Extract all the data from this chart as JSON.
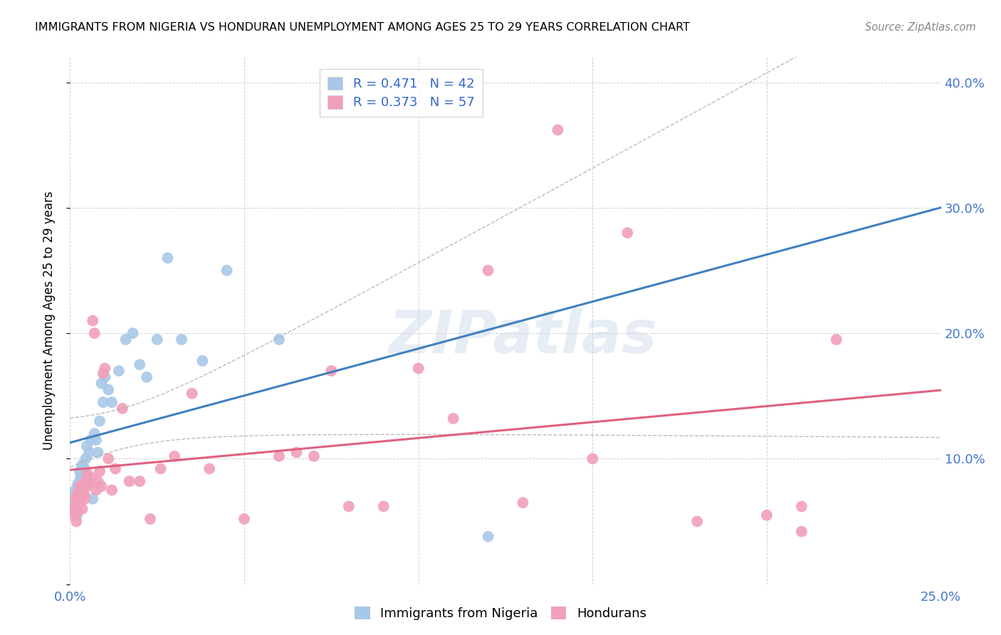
{
  "title": "IMMIGRANTS FROM NIGERIA VS HONDURAN UNEMPLOYMENT AMONG AGES 25 TO 29 YEARS CORRELATION CHART",
  "source": "Source: ZipAtlas.com",
  "ylabel": "Unemployment Among Ages 25 to 29 years",
  "xlim": [
    0.0,
    0.25
  ],
  "ylim": [
    0.0,
    0.42
  ],
  "color_nigeria": "#a8c8e8",
  "color_honduran": "#f0a0b8",
  "color_line_nigeria": "#4080c0",
  "color_line_honduran": "#e06080",
  "color_confint": "#a0b8d0",
  "watermark": "ZIPatlas",
  "legend_label1": "R = 0.471   N = 42",
  "legend_label2": "R = 0.373   N = 57",
  "nigeria_x": [
    0.0008,
    0.001,
    0.0012,
    0.0015,
    0.0018,
    0.002,
    0.0022,
    0.0025,
    0.0028,
    0.003,
    0.0032,
    0.0035,
    0.0038,
    0.004,
    0.0042,
    0.0045,
    0.0048,
    0.005,
    0.0055,
    0.006,
    0.0065,
    0.007,
    0.0075,
    0.008,
    0.0085,
    0.009,
    0.0095,
    0.01,
    0.011,
    0.012,
    0.014,
    0.016,
    0.018,
    0.02,
    0.022,
    0.025,
    0.028,
    0.032,
    0.038,
    0.045,
    0.06,
    0.12
  ],
  "nigeria_y": [
    0.065,
    0.07,
    0.06,
    0.075,
    0.068,
    0.055,
    0.08,
    0.072,
    0.09,
    0.085,
    0.078,
    0.095,
    0.072,
    0.088,
    0.092,
    0.1,
    0.11,
    0.082,
    0.105,
    0.115,
    0.068,
    0.12,
    0.115,
    0.105,
    0.13,
    0.16,
    0.145,
    0.165,
    0.155,
    0.145,
    0.17,
    0.195,
    0.2,
    0.175,
    0.165,
    0.195,
    0.26,
    0.195,
    0.178,
    0.25,
    0.195,
    0.038
  ],
  "honduran_x": [
    0.0008,
    0.0012,
    0.0015,
    0.0018,
    0.002,
    0.0022,
    0.0025,
    0.0028,
    0.003,
    0.0032,
    0.0035,
    0.0038,
    0.004,
    0.0042,
    0.0045,
    0.0048,
    0.005,
    0.0055,
    0.006,
    0.0065,
    0.007,
    0.0075,
    0.008,
    0.0085,
    0.009,
    0.0095,
    0.01,
    0.011,
    0.012,
    0.013,
    0.015,
    0.017,
    0.02,
    0.023,
    0.026,
    0.03,
    0.035,
    0.04,
    0.05,
    0.06,
    0.07,
    0.08,
    0.09,
    0.1,
    0.11,
    0.12,
    0.14,
    0.16,
    0.18,
    0.2,
    0.21,
    0.21,
    0.13,
    0.15,
    0.065,
    0.075,
    0.22
  ],
  "honduran_y": [
    0.06,
    0.055,
    0.068,
    0.05,
    0.072,
    0.058,
    0.065,
    0.078,
    0.068,
    0.075,
    0.06,
    0.08,
    0.072,
    0.068,
    0.082,
    0.078,
    0.088,
    0.08,
    0.085,
    0.21,
    0.2,
    0.075,
    0.082,
    0.09,
    0.078,
    0.168,
    0.172,
    0.1,
    0.075,
    0.092,
    0.14,
    0.082,
    0.082,
    0.052,
    0.092,
    0.102,
    0.152,
    0.092,
    0.052,
    0.102,
    0.102,
    0.062,
    0.062,
    0.172,
    0.132,
    0.25,
    0.362,
    0.28,
    0.05,
    0.055,
    0.062,
    0.042,
    0.065,
    0.1,
    0.105,
    0.17,
    0.195
  ]
}
